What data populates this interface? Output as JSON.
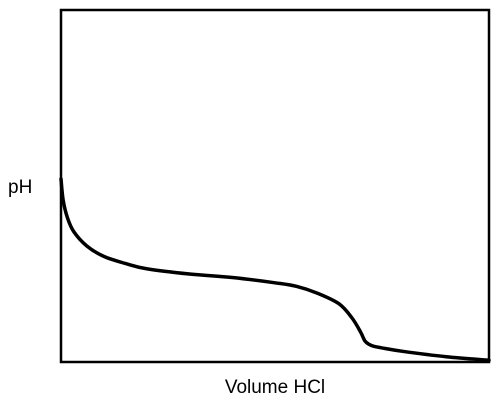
{
  "chart_data": {
    "type": "line",
    "title": "",
    "xlabel": "Volume HCl",
    "ylabel": "pH",
    "grid": false,
    "legend": "none",
    "axis_ticks": false,
    "xlim": [
      0,
      1
    ],
    "ylim": [
      0,
      1
    ],
    "series": [
      {
        "name": "",
        "x": [
          0.0,
          0.005,
          0.015,
          0.03,
          0.06,
          0.1,
          0.15,
          0.2,
          0.3,
          0.4,
          0.5,
          0.55,
          0.6,
          0.65,
          0.68,
          0.7,
          0.71,
          0.72,
          0.73,
          0.75,
          0.8,
          0.9,
          1.0
        ],
        "y": [
          0.52,
          0.46,
          0.41,
          0.37,
          0.33,
          0.3,
          0.28,
          0.265,
          0.25,
          0.24,
          0.225,
          0.215,
          0.195,
          0.165,
          0.125,
          0.085,
          0.06,
          0.05,
          0.045,
          0.04,
          0.03,
          0.015,
          0.005
        ]
      }
    ],
    "colors": {
      "line": "#000000",
      "frame": "#000000",
      "background": "#ffffff"
    }
  }
}
